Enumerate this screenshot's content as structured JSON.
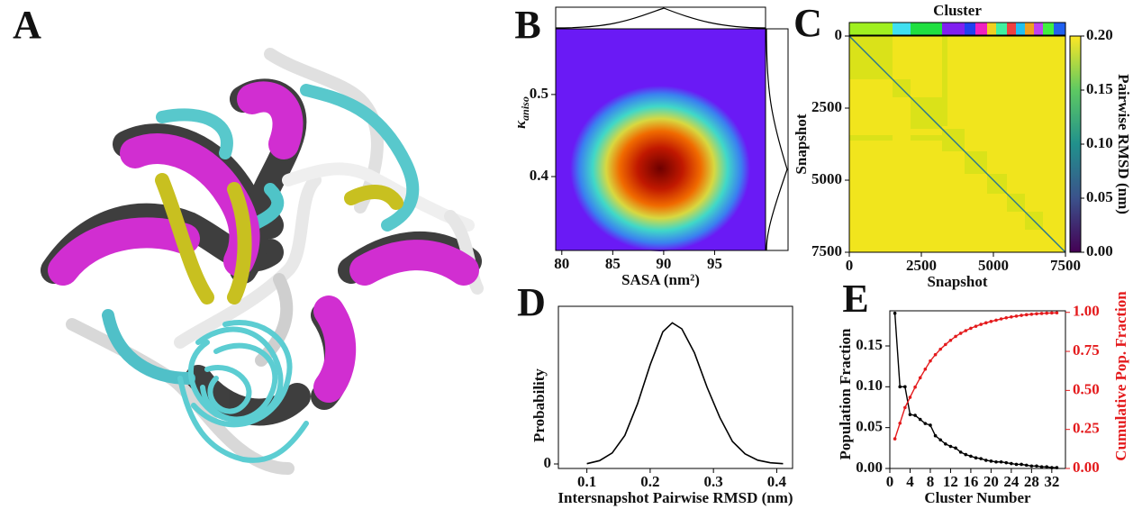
{
  "panel_labels": [
    "A",
    "B",
    "C",
    "D",
    "E"
  ],
  "chart_data": [
    {
      "type": "density",
      "xlabel": "SASA (nm²)",
      "ylabel": "κ",
      "ylabel_subscript": "aniso",
      "xlim": [
        79.4,
        100
      ],
      "xticks": [
        80,
        85,
        90,
        95
      ],
      "ylim": [
        0.31,
        0.58
      ],
      "yticks": [
        0.4,
        0.5
      ]
    },
    {
      "type": "heatmap",
      "title": "Cluster",
      "xlabel": "Snapshot",
      "ylabel": "Snapshot",
      "xlim": [
        0,
        7500
      ],
      "xticks": [
        0,
        2500,
        5000,
        7500
      ],
      "ylim": [
        0,
        7500
      ],
      "yticks": [
        0,
        2500,
        5000,
        7500
      ],
      "colorbar": {
        "label": "Pairwise RMSD (nm)",
        "lim": [
          0,
          0.2
        ],
        "ticks": [
          {
            "value": 0,
            "label": "0.00"
          },
          {
            "value": 0.05,
            "label": "0.05"
          },
          {
            "value": 0.1,
            "label": "0.10"
          },
          {
            "value": 0.15,
            "label": "0.15"
          },
          {
            "value": 0.2,
            "label": "0.20"
          }
        ]
      }
    },
    {
      "type": "line",
      "xlabel": "Intersnapshot Pairwise RMSD (nm)",
      "ylabel": "Probability",
      "color": "#000000",
      "x": [
        0.1,
        0.12,
        0.14,
        0.16,
        0.18,
        0.2,
        0.22,
        0.235,
        0.25,
        0.27,
        0.29,
        0.31,
        0.33,
        0.35,
        0.37,
        0.39,
        0.41
      ],
      "values": [
        0.02,
        0.22,
        0.73,
        1.9,
        4.0,
        6.6,
        8.8,
        9.4,
        9.0,
        7.4,
        5.1,
        3.1,
        1.5,
        0.67,
        0.25,
        0.08,
        0.02
      ],
      "xlim": [
        0.055,
        0.425
      ],
      "xticks": [
        0.1,
        0.2,
        0.3,
        0.4
      ],
      "ylim": [
        -0.3,
        10.5
      ],
      "yticks": [
        0
      ]
    },
    {
      "type": "dual_line",
      "xlabel": "Cluster Number",
      "ylabel": "Population Fraction",
      "y2label": "Cumulative Pop. Fraction",
      "x": [
        1,
        2,
        3,
        4,
        5,
        6,
        7,
        8,
        9,
        10,
        11,
        12,
        13,
        14,
        15,
        16,
        17,
        18,
        19,
        20,
        21,
        22,
        23,
        24,
        25,
        26,
        27,
        28,
        29,
        30,
        31,
        32,
        33
      ],
      "series": [
        {
          "color": "#000000",
          "values": [
            0.19,
            0.1,
            0.1,
            0.066,
            0.065,
            0.06,
            0.055,
            0.053,
            0.04,
            0.035,
            0.03,
            0.027,
            0.025,
            0.02,
            0.017,
            0.015,
            0.013,
            0.012,
            0.01,
            0.009,
            0.008,
            0.008,
            0.007,
            0.006,
            0.005,
            0.005,
            0.004,
            0.003,
            0.003,
            0.002,
            0.002,
            0.001,
            0.001
          ]
        },
        {
          "color": "#e41a1c",
          "axis": "y2",
          "values": [
            0.19,
            0.29,
            0.39,
            0.456,
            0.521,
            0.581,
            0.636,
            0.689,
            0.729,
            0.764,
            0.794,
            0.821,
            0.846,
            0.866,
            0.883,
            0.898,
            0.911,
            0.923,
            0.933,
            0.942,
            0.95,
            0.958,
            0.965,
            0.971,
            0.976,
            0.981,
            0.985,
            0.988,
            0.991,
            0.993,
            0.995,
            0.996,
            0.997
          ]
        }
      ],
      "xlim": [
        0,
        34.7
      ],
      "xticks": [
        0,
        4,
        8,
        12,
        16,
        20,
        24,
        28,
        32
      ],
      "ylim": [
        0,
        0.193
      ],
      "yticks": [
        {
          "value": 0,
          "label": "0.00"
        },
        {
          "value": 0.05,
          "label": "0.05"
        },
        {
          "value": 0.1,
          "label": "0.10"
        },
        {
          "value": 0.15,
          "label": "0.15"
        }
      ],
      "y2lim": [
        0,
        1.01
      ],
      "y2ticks": [
        {
          "value": 0,
          "label": "0.00"
        },
        {
          "value": 0.25,
          "label": "0.25"
        },
        {
          "value": 0.5,
          "label": "0.50"
        },
        {
          "value": 0.75,
          "label": "0.75"
        },
        {
          "value": 1,
          "label": "1.00"
        }
      ]
    }
  ]
}
